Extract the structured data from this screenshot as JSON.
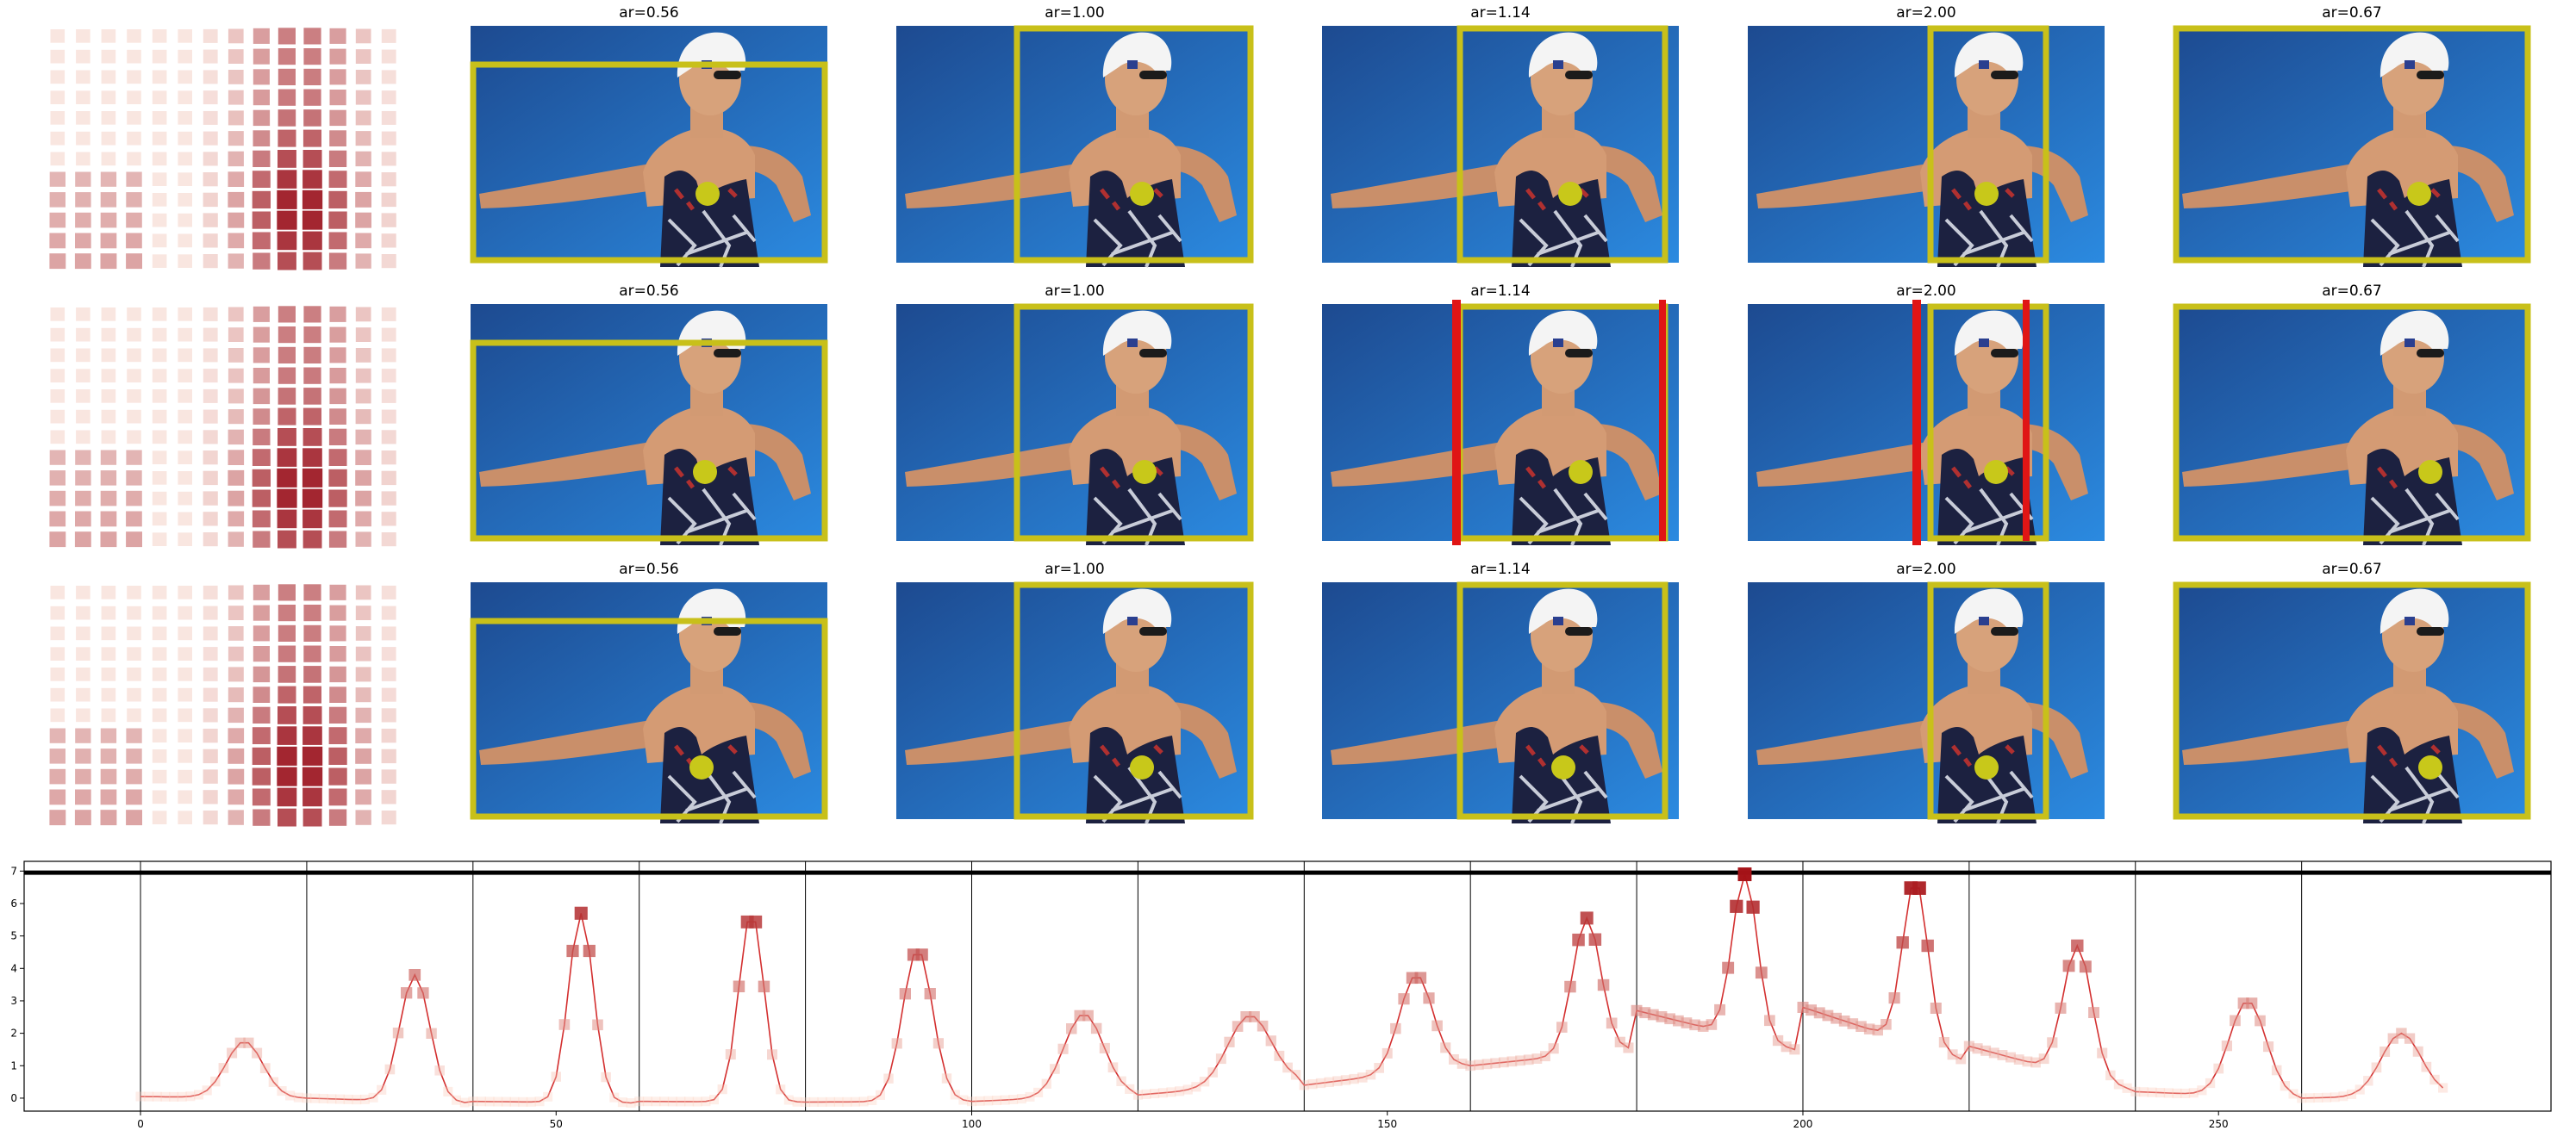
{
  "figure": {
    "rows": [
      {
        "heatmap": "heatmap-row-1",
        "panels": [
          {
            "title": "ar=0.56",
            "box": "crop-box",
            "dot": "yellow-dot"
          },
          {
            "title": "ar=1.00",
            "box": "crop-box",
            "dot": "yellow-dot"
          },
          {
            "title": "ar=1.14",
            "box": "crop-box",
            "dot": "yellow-dot"
          },
          {
            "title": "ar=2.00",
            "box": "crop-box",
            "dot": "yellow-dot"
          },
          {
            "title": "ar=0.67",
            "box": "crop-box",
            "dot": "yellow-dot"
          }
        ]
      },
      {
        "heatmap": "heatmap-row-2",
        "panels": [
          {
            "title": "ar=0.56",
            "box": "crop-box",
            "dot": "yellow-dot"
          },
          {
            "title": "ar=1.00",
            "box": "crop-box",
            "dot": "yellow-dot"
          },
          {
            "title": "ar=1.14",
            "box": "crop-box",
            "dot": "yellow-dot",
            "red_bars": true
          },
          {
            "title": "ar=2.00",
            "box": "crop-box",
            "dot": "yellow-dot",
            "red_bars": true
          },
          {
            "title": "ar=0.67",
            "box": "crop-box",
            "dot": "yellow-dot"
          }
        ]
      },
      {
        "heatmap": "heatmap-row-3",
        "panels": [
          {
            "title": "ar=0.56",
            "box": "crop-box",
            "dot": "yellow-dot"
          },
          {
            "title": "ar=1.00",
            "box": "crop-box",
            "dot": "yellow-dot"
          },
          {
            "title": "ar=1.14",
            "box": "crop-box",
            "dot": "yellow-dot"
          },
          {
            "title": "ar=2.00",
            "box": "crop-box",
            "dot": "yellow-dot"
          },
          {
            "title": "ar=0.67",
            "box": "crop-box",
            "dot": "yellow-dot"
          }
        ]
      }
    ],
    "colors": {
      "box": "#c8c01a",
      "dot": "#c8c81a",
      "red_bar": "#e01515",
      "line": "#d32f2f",
      "marker_low": "#fdd0c0",
      "marker_high": "#a50f15",
      "water_top": "#1e4f95",
      "water_bottom": "#2a86dc"
    }
  },
  "chart_data": {
    "type": "line",
    "title": "",
    "xlabel": "",
    "ylabel": "",
    "xlim": [
      -14,
      290
    ],
    "ylim": [
      -0.4,
      7.3
    ],
    "xticks": [
      0,
      50,
      100,
      150,
      200,
      250
    ],
    "yticks": [
      0,
      1,
      2,
      3,
      4,
      5,
      6,
      7
    ],
    "grid": false,
    "legend": "none",
    "hline": 6.95,
    "vlines": [
      0,
      20,
      40,
      60,
      80,
      100,
      120,
      140,
      160,
      180,
      200,
      220,
      240,
      260
    ],
    "segments": [
      {
        "start": 0,
        "peak_x": 12.5,
        "peak": 1.75,
        "left_base": 0.05,
        "right_base": 0.0,
        "sigma": 2.2
      },
      {
        "start": 20,
        "peak_x": 33,
        "peak": 3.8,
        "left_base": 0.0,
        "right_base": -0.15,
        "sigma": 1.8
      },
      {
        "start": 40,
        "peak_x": 53,
        "peak": 5.7,
        "left_base": -0.1,
        "right_base": -0.15,
        "sigma": 1.5
      },
      {
        "start": 60,
        "peak_x": 73.5,
        "peak": 5.75,
        "left_base": -0.1,
        "right_base": -0.12,
        "sigma": 1.5
      },
      {
        "start": 80,
        "peak_x": 93.5,
        "peak": 4.6,
        "left_base": -0.12,
        "right_base": -0.1,
        "sigma": 1.8
      },
      {
        "start": 100,
        "peak_x": 113.5,
        "peak": 2.6,
        "left_base": -0.1,
        "right_base": 0.1,
        "sigma": 2.4
      },
      {
        "start": 120,
        "peak_x": 133.5,
        "peak": 2.55,
        "left_base": 0.1,
        "right_base": 0.5,
        "sigma": 2.6
      },
      {
        "start": 140,
        "peak_x": 153.5,
        "peak": 3.8,
        "left_base": 0.4,
        "right_base": 1.0,
        "sigma": 2.0
      },
      {
        "start": 160,
        "peak_x": 174,
        "peak": 5.55,
        "left_base": 1.0,
        "right_base": 1.5,
        "sigma": 1.7
      },
      {
        "start": 180,
        "peak_x": 193,
        "peak": 6.9,
        "left_base": 2.7,
        "right_base": 1.5,
        "sigma": 1.5
      },
      {
        "start": 200,
        "peak_x": 213.5,
        "peak": 6.75,
        "left_base": 2.8,
        "right_base": 1.2,
        "sigma": 1.5
      },
      {
        "start": 220,
        "peak_x": 233,
        "peak": 4.7,
        "left_base": 1.6,
        "right_base": 0.3,
        "sigma": 1.7
      },
      {
        "start": 240,
        "peak_x": 253.5,
        "peak": 3.0,
        "left_base": 0.2,
        "right_base": 0.0,
        "sigma": 2.2
      },
      {
        "start": 260,
        "peak_x": 272,
        "peak": 2.0,
        "left_base": 0.0,
        "right_base": 0.1,
        "sigma": 2.4
      }
    ],
    "x_end": 278
  }
}
